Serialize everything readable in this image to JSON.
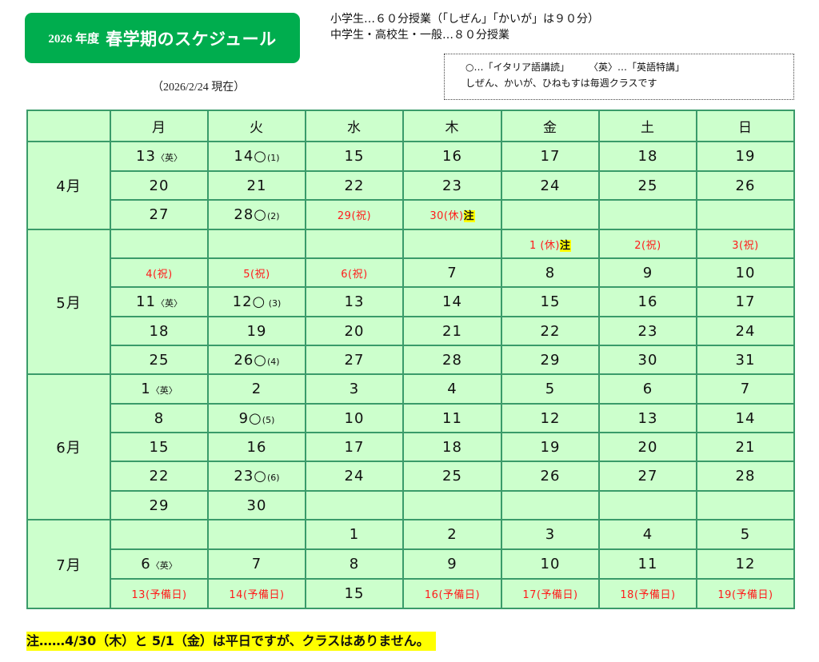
{
  "header": {
    "year_label": "2026 年度",
    "title": "春学期のスケジュール",
    "as_of": "（2026/2/24 現在）",
    "accent_color": "#00ad4e"
  },
  "info": {
    "line1": "小学生…６０分授業（「しぜん」「かいが」は９０分）",
    "line2": "中学生・高校生・一般…８０分授業"
  },
  "legend": {
    "circle": "○…「イタリア語講読」",
    "english": "〈英〉…「英語特講」",
    "weekly": "しぜん、かいが、ひねもすは毎週クラスです"
  },
  "calendar": {
    "weekdays": [
      "月",
      "火",
      "水",
      "木",
      "金",
      "土",
      "日"
    ],
    "months": [
      {
        "label": "4月",
        "weeks": [
          [
            {
              "d": "13",
              "s": "〈英〉"
            },
            {
              "d": "14○",
              "s": "(1)"
            },
            {
              "d": "15"
            },
            {
              "d": "16"
            },
            {
              "d": "17"
            },
            {
              "d": "18"
            },
            {
              "d": "19"
            }
          ],
          [
            {
              "d": "20"
            },
            {
              "d": "21"
            },
            {
              "d": "22"
            },
            {
              "d": "23"
            },
            {
              "d": "24"
            },
            {
              "d": "25"
            },
            {
              "d": "26"
            }
          ],
          [
            {
              "d": "27"
            },
            {
              "d": "28○",
              "s": "(2)"
            },
            {
              "d": "29(祝)",
              "red": true
            },
            {
              "d": "30(休)",
              "red": true,
              "note": "注"
            },
            {
              "d": ""
            },
            {
              "d": ""
            },
            {
              "d": ""
            }
          ]
        ]
      },
      {
        "label": "5月",
        "weeks": [
          [
            {
              "d": ""
            },
            {
              "d": ""
            },
            {
              "d": ""
            },
            {
              "d": ""
            },
            {
              "d": "1 (休)",
              "red": true,
              "note": "注"
            },
            {
              "d": "2(祝)",
              "red": true
            },
            {
              "d": "3(祝)",
              "red": true
            }
          ],
          [
            {
              "d": "4(祝)",
              "red": true
            },
            {
              "d": "5(祝)",
              "red": true
            },
            {
              "d": "6(祝)",
              "red": true
            },
            {
              "d": "7"
            },
            {
              "d": "8"
            },
            {
              "d": "9"
            },
            {
              "d": "10"
            }
          ],
          [
            {
              "d": "11",
              "s": "〈英〉"
            },
            {
              "d": "12○",
              "s": " (3)"
            },
            {
              "d": "13"
            },
            {
              "d": "14"
            },
            {
              "d": "15"
            },
            {
              "d": "16"
            },
            {
              "d": "17"
            }
          ],
          [
            {
              "d": "18"
            },
            {
              "d": "19"
            },
            {
              "d": "20"
            },
            {
              "d": "21"
            },
            {
              "d": "22"
            },
            {
              "d": "23"
            },
            {
              "d": "24"
            }
          ],
          [
            {
              "d": "25"
            },
            {
              "d": "26○",
              "s": "(4)"
            },
            {
              "d": "27"
            },
            {
              "d": "28"
            },
            {
              "d": "29"
            },
            {
              "d": "30"
            },
            {
              "d": "31"
            }
          ]
        ]
      },
      {
        "label": "6月",
        "weeks": [
          [
            {
              "d": "1",
              "s": "〈英〉"
            },
            {
              "d": "2"
            },
            {
              "d": "3"
            },
            {
              "d": "4"
            },
            {
              "d": "5"
            },
            {
              "d": "6"
            },
            {
              "d": "7"
            }
          ],
          [
            {
              "d": "8"
            },
            {
              "d": "9○",
              "s": "(5)"
            },
            {
              "d": "10"
            },
            {
              "d": "11"
            },
            {
              "d": "12"
            },
            {
              "d": "13"
            },
            {
              "d": "14"
            }
          ],
          [
            {
              "d": "15"
            },
            {
              "d": "16"
            },
            {
              "d": "17"
            },
            {
              "d": "18"
            },
            {
              "d": "19"
            },
            {
              "d": "20"
            },
            {
              "d": "21"
            }
          ],
          [
            {
              "d": "22"
            },
            {
              "d": "23○",
              "s": "(6)"
            },
            {
              "d": "24"
            },
            {
              "d": "25"
            },
            {
              "d": "26"
            },
            {
              "d": "27"
            },
            {
              "d": "28"
            }
          ],
          [
            {
              "d": "29"
            },
            {
              "d": "30"
            },
            {
              "d": ""
            },
            {
              "d": ""
            },
            {
              "d": ""
            },
            {
              "d": ""
            },
            {
              "d": ""
            }
          ]
        ]
      },
      {
        "label": "7月",
        "weeks": [
          [
            {
              "d": ""
            },
            {
              "d": ""
            },
            {
              "d": "1"
            },
            {
              "d": "2"
            },
            {
              "d": "3"
            },
            {
              "d": "4"
            },
            {
              "d": "5"
            }
          ],
          [
            {
              "d": "6",
              "s": "〈英〉"
            },
            {
              "d": "7"
            },
            {
              "d": "8"
            },
            {
              "d": "9"
            },
            {
              "d": "10"
            },
            {
              "d": "11"
            },
            {
              "d": "12"
            }
          ],
          [
            {
              "d": "13(予備日)",
              "red": true
            },
            {
              "d": "14(予備日)",
              "red": true
            },
            {
              "d": "15"
            },
            {
              "d": "16(予備日)",
              "red": true
            },
            {
              "d": "17(予備日)",
              "red": true
            },
            {
              "d": "18(予備日)",
              "red": true
            },
            {
              "d": "19(予備日)",
              "red": true
            }
          ]
        ]
      }
    ],
    "colors": {
      "cell_bg": "#ccffcc",
      "border": "#3a9b6a",
      "holiday_text": "#ff1a1a",
      "highlight": "#ffff00"
    }
  },
  "footer": {
    "note": "注……4/30（木）と 5/1（金）は平日ですが、クラスはありません。"
  }
}
